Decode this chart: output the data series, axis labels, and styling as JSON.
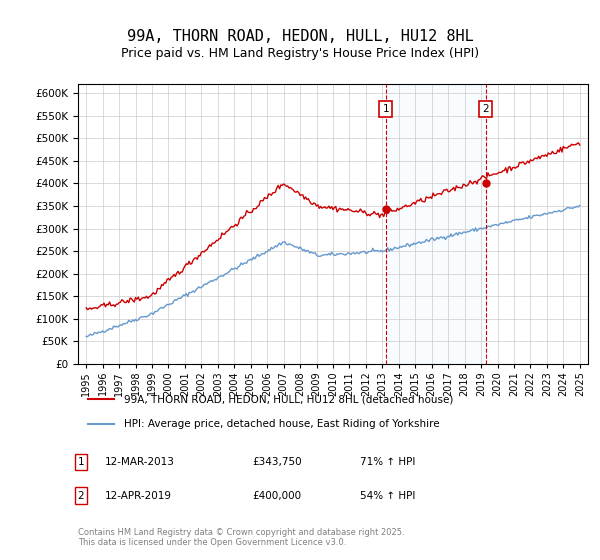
{
  "title": "99A, THORN ROAD, HEDON, HULL, HU12 8HL",
  "subtitle": "Price paid vs. HM Land Registry's House Price Index (HPI)",
  "ylabel": "",
  "background_color": "#ffffff",
  "plot_bg_color": "#ffffff",
  "grid_color": "#cccccc",
  "red_color": "#cc0000",
  "blue_color": "#6699cc",
  "shade_color": "#ddeeff",
  "marker1_date_idx": 18.25,
  "marker2_date_idx": 24.33,
  "marker1_label": "1",
  "marker2_label": "2",
  "marker1_info": "12-MAR-2013    £343,750        71% ↑ HPI",
  "marker2_info": "12-APR-2019    £400,000        54% ↑ HPI",
  "legend_line1": "99A, THORN ROAD, HEDON, HULL, HU12 8HL (detached house)",
  "legend_line2": "HPI: Average price, detached house, East Riding of Yorkshire",
  "footer": "Contains HM Land Registry data © Crown copyright and database right 2025.\nThis data is licensed under the Open Government Licence v3.0.",
  "ylim": [
    0,
    620000
  ],
  "yticks": [
    0,
    50000,
    100000,
    150000,
    200000,
    250000,
    300000,
    350000,
    400000,
    450000,
    500000,
    550000,
    600000
  ],
  "ytick_labels": [
    "£0",
    "£50K",
    "£100K",
    "£150K",
    "£200K",
    "£250K",
    "£300K",
    "£350K",
    "£400K",
    "£450K",
    "£500K",
    "£550K",
    "£600K"
  ],
  "xtick_years": [
    1995,
    1996,
    1997,
    1998,
    1999,
    2000,
    2001,
    2002,
    2003,
    2004,
    2005,
    2006,
    2007,
    2008,
    2009,
    2010,
    2011,
    2012,
    2013,
    2014,
    2015,
    2016,
    2017,
    2018,
    2019,
    2020,
    2021,
    2022,
    2023,
    2024,
    2025
  ]
}
